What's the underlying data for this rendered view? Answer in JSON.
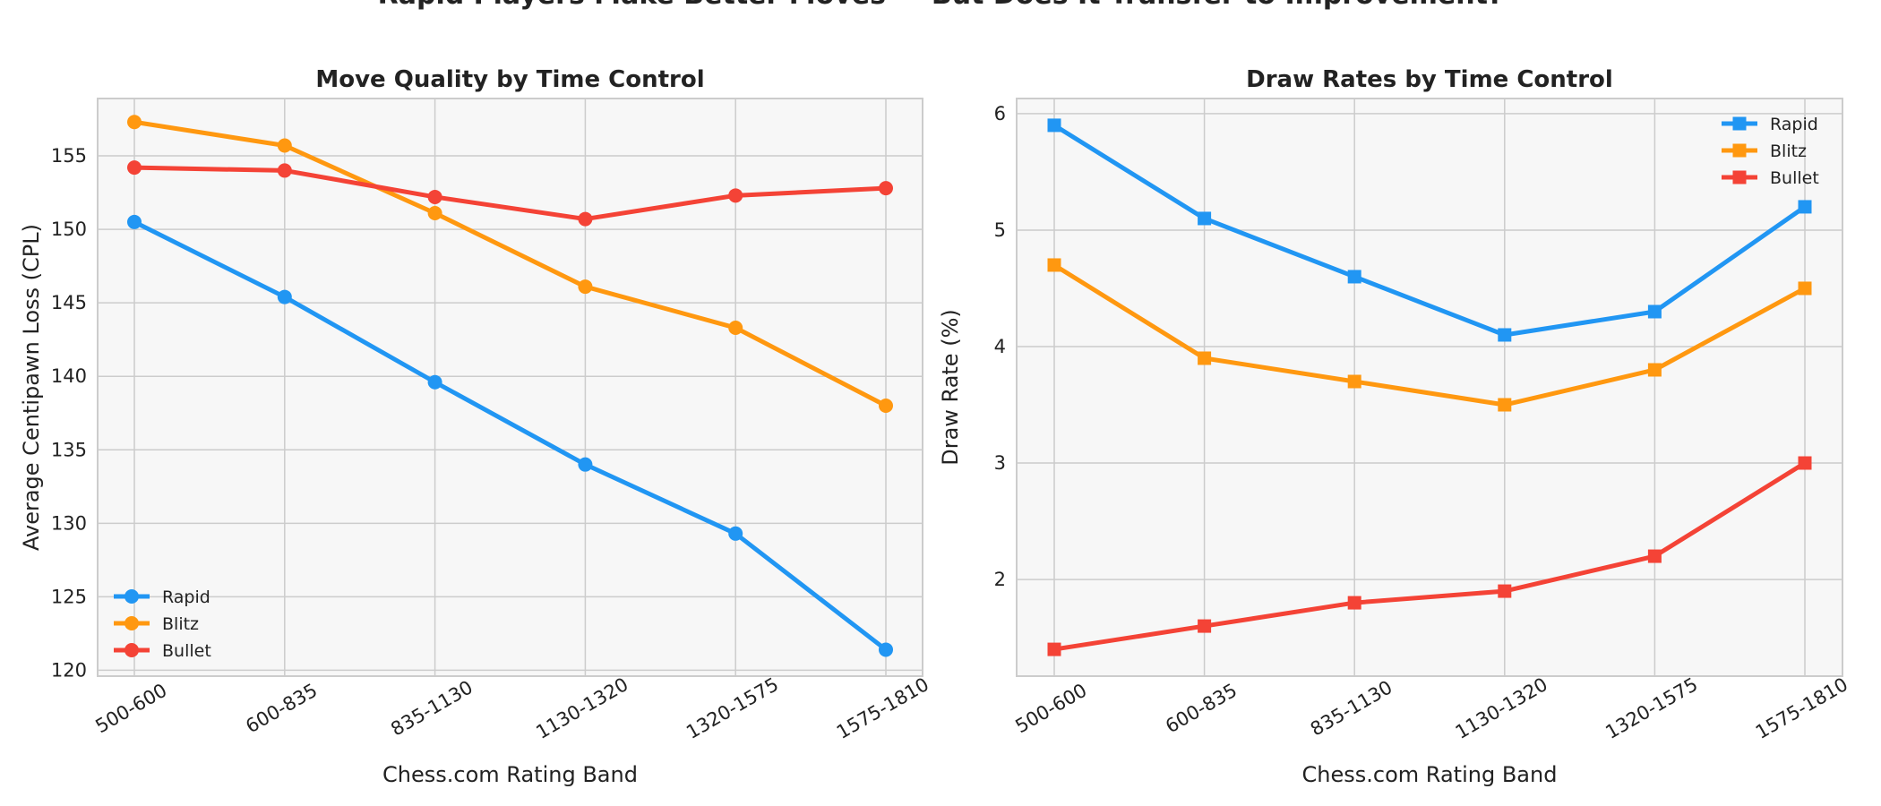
{
  "suptitle": "Rapid Players Make Better Moves — But Does It Transfer to Improvement?",
  "colors": {
    "Rapid": "#2196f3",
    "Blitz": "#ff9810",
    "Bullet": "#f44336"
  },
  "chart_data": [
    {
      "type": "line",
      "title": "Move Quality by Time Control",
      "xlabel": "Chess.com Rating Band",
      "ylabel": "Average Centipawn Loss (CPL)",
      "categories": [
        "500-600",
        "600-835",
        "835-1130",
        "1130-1320",
        "1320-1575",
        "1575-1810"
      ],
      "ylim": [
        119.6,
        158.9
      ],
      "yticks": [
        120,
        125,
        130,
        135,
        140,
        145,
        150,
        155
      ],
      "marker": "circle",
      "grid": true,
      "legend_position": "lower-left",
      "series": [
        {
          "name": "Rapid",
          "values": [
            150.5,
            145.4,
            139.6,
            134.0,
            129.3,
            121.4
          ]
        },
        {
          "name": "Blitz",
          "values": [
            157.3,
            155.7,
            151.1,
            146.1,
            143.3,
            138.0
          ]
        },
        {
          "name": "Bullet",
          "values": [
            154.2,
            154.0,
            152.2,
            150.7,
            152.3,
            152.8
          ]
        }
      ]
    },
    {
      "type": "line",
      "title": "Draw Rates by Time Control",
      "xlabel": "Chess.com Rating Band",
      "ylabel": "Draw Rate (%)",
      "categories": [
        "500-600",
        "600-835",
        "835-1130",
        "1130-1320",
        "1320-1575",
        "1575-1810"
      ],
      "ylim": [
        1.17,
        6.13
      ],
      "yticks": [
        2,
        3,
        4,
        5,
        6
      ],
      "marker": "square",
      "grid": true,
      "legend_position": "upper-right",
      "series": [
        {
          "name": "Rapid",
          "values": [
            5.9,
            5.1,
            4.6,
            4.1,
            4.3,
            5.2
          ]
        },
        {
          "name": "Blitz",
          "values": [
            4.7,
            3.9,
            3.7,
            3.5,
            3.8,
            4.5
          ]
        },
        {
          "name": "Bullet",
          "values": [
            1.4,
            1.6,
            1.8,
            1.9,
            2.2,
            3.0
          ]
        }
      ]
    }
  ]
}
